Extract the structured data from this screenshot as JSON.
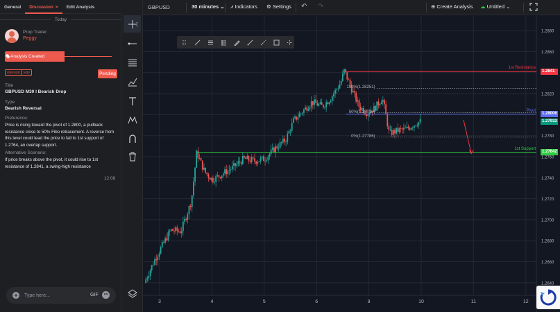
{
  "panel": {
    "tabs": [
      {
        "label": "General"
      },
      {
        "label": "Discussion",
        "close": "×"
      },
      {
        "label": "Edit Analysis"
      }
    ],
    "date_separator": "Today",
    "user": {
      "role": "Prop Trader",
      "name": "Peggy"
    },
    "status_event": "Analysis Created",
    "tags": [
      "GBPUSD",
      "M30"
    ],
    "status_badge": "Pending",
    "title_label": "Title",
    "title_value": "GBPUSD M30 I Bearish Drop",
    "type_label": "Type",
    "type_value": "Bearish Reversal",
    "preference_label": "Preference:",
    "preference_text": "Price is rising toward the pivot of 1.2800, a pullback resistance close to 50% Fibo retracement. A reverse from this level could lead the price to fall to 1st support of 1.2764, an overlap support.",
    "alternative_label": "Alternative Scenario:",
    "alternative_text": "If price breaks above the pivot, it could rise to 1st resistance of 1.2841, a swing-high resistance",
    "message_time": "12:08",
    "input_placeholder": "Type here...",
    "gif_label": "GIF"
  },
  "topbar": {
    "symbol": "GBPUSD",
    "interval": "30 minutes",
    "indicators": "Indicators",
    "settings": "Settings",
    "create_analysis": "Create Analysis",
    "layout_name": "Untitled"
  },
  "chart_data": {
    "type": "candlestick",
    "symbol": "GBPUSD",
    "timeframe": "30 minutes",
    "x_ticks": [
      "3",
      "4",
      "5",
      "6",
      "9",
      "10",
      "11",
      "12"
    ],
    "y_ticks": [
      "1.2880",
      "1.2860",
      "1.2840",
      "1.2820",
      "1.2800",
      "1.2780",
      "1.2760",
      "1.2740",
      "1.2720",
      "1.2700",
      "1.2680",
      "1.2660",
      "1.2640"
    ],
    "ylim": [
      1.2628,
      1.2894
    ],
    "grid": true,
    "levels": [
      {
        "label": "1st Resistance",
        "price": 1.2841,
        "tag": "1.2841",
        "color": "#f23645"
      },
      {
        "label": "Pivot",
        "price": 1.28006,
        "tag": "1.28006",
        "color": "#5b6bf0"
      },
      {
        "label": "1st Support",
        "price": 1.27642,
        "tag": "1.27642",
        "color": "#2ecc40"
      }
    ],
    "current_price": {
      "price": 1.27932,
      "tag": "1.27932",
      "color": "#089981"
    },
    "fib": [
      {
        "label": "100%(1.28251)",
        "price": 1.28251
      },
      {
        "label": "50%(1.28019)",
        "price": 1.28019
      },
      {
        "label": "0%(1.27786)",
        "price": 1.27786
      }
    ],
    "path": [
      [
        0.0,
        1.264
      ],
      [
        0.2,
        1.2662
      ],
      [
        0.5,
        1.269
      ],
      [
        0.7,
        1.2689
      ],
      [
        0.9,
        1.2718
      ],
      [
        1.0,
        1.2764
      ],
      [
        1.15,
        1.2746
      ],
      [
        1.3,
        1.2738
      ],
      [
        1.5,
        1.2744
      ],
      [
        1.7,
        1.275
      ],
      [
        1.9,
        1.2758
      ],
      [
        2.1,
        1.2756
      ],
      [
        2.3,
        1.2758
      ],
      [
        2.5,
        1.2768
      ],
      [
        2.7,
        1.2776
      ],
      [
        2.85,
        1.2794
      ],
      [
        3.0,
        1.2802
      ],
      [
        3.2,
        1.2812
      ],
      [
        3.4,
        1.2808
      ],
      [
        3.55,
        1.2815
      ],
      [
        3.75,
        1.283
      ],
      [
        3.82,
        1.2842
      ],
      [
        3.95,
        1.2826
      ],
      [
        4.1,
        1.2808
      ],
      [
        4.25,
        1.2802
      ],
      [
        4.4,
        1.2806
      ],
      [
        4.55,
        1.2816
      ],
      [
        4.6,
        1.2804
      ],
      [
        4.68,
        1.2782
      ],
      [
        4.85,
        1.2785
      ],
      [
        5.0,
        1.2786
      ],
      [
        5.2,
        1.2792
      ],
      [
        5.3,
        1.2794
      ]
    ],
    "projection": {
      "from": [
        6.1,
        1.2795
      ],
      "to": [
        6.25,
        1.2763
      ],
      "color": "#f23645"
    }
  }
}
